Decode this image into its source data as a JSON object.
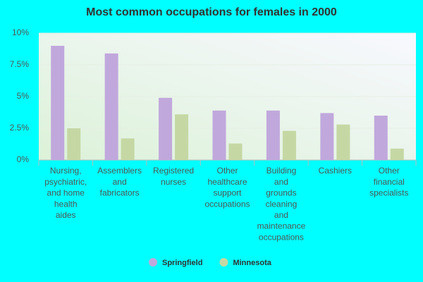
{
  "chart_data": {
    "type": "bar",
    "title": "Most common occupations for females in 2000",
    "categories": [
      [
        "Nursing,",
        "psychiatric,",
        "and home",
        "health",
        "aides"
      ],
      [
        "Assemblers",
        "and",
        "fabricators"
      ],
      [
        "Registered",
        "nurses"
      ],
      [
        "Other",
        "healthcare",
        "support",
        "occupations"
      ],
      [
        "Building",
        "and",
        "grounds",
        "cleaning",
        "and",
        "maintenance",
        "occupations"
      ],
      [
        "Cashiers"
      ],
      [
        "Other",
        "financial",
        "specialists"
      ]
    ],
    "series": [
      {
        "name": "Springfield",
        "color": "#c0a8dc",
        "values": [
          9.0,
          8.4,
          4.9,
          3.9,
          3.9,
          3.7,
          3.5
        ]
      },
      {
        "name": "Minnesota",
        "color": "#c5d8a4",
        "values": [
          2.5,
          1.7,
          3.6,
          1.3,
          2.3,
          2.8,
          0.9
        ]
      }
    ],
    "ylim": [
      0,
      10
    ],
    "yticks": [
      {
        "value": 0,
        "label": "0%"
      },
      {
        "value": 2.5,
        "label": "2.5%"
      },
      {
        "value": 5,
        "label": "5%"
      },
      {
        "value": 7.5,
        "label": "7.5%"
      },
      {
        "value": 10,
        "label": "10%"
      }
    ],
    "grid": true,
    "legend": "bottom"
  }
}
